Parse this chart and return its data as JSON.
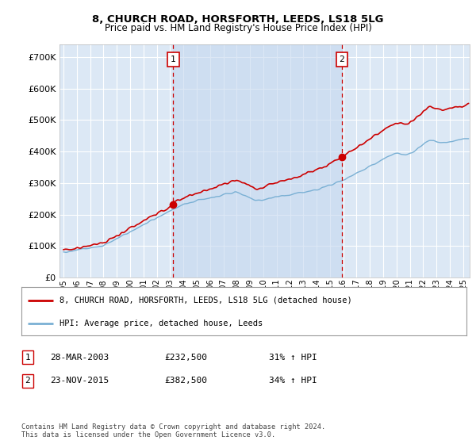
{
  "title1": "8, CHURCH ROAD, HORSFORTH, LEEDS, LS18 5LG",
  "title2": "Price paid vs. HM Land Registry's House Price Index (HPI)",
  "ytick_values": [
    0,
    100000,
    200000,
    300000,
    400000,
    500000,
    600000,
    700000
  ],
  "ylim": [
    0,
    740000
  ],
  "xlim_start": 1994.7,
  "xlim_end": 2025.5,
  "plot_bg": "#dce8f5",
  "grid_color": "#ffffff",
  "red_color": "#cc0000",
  "blue_color": "#7ab0d4",
  "shade_color": "#c5d8ef",
  "marker1_date": 2003.24,
  "marker1_value": 232500,
  "marker2_date": 2015.9,
  "marker2_value": 382500,
  "legend_label1": "8, CHURCH ROAD, HORSFORTH, LEEDS, LS18 5LG (detached house)",
  "legend_label2": "HPI: Average price, detached house, Leeds",
  "table_entries": [
    {
      "num": "1",
      "date": "28-MAR-2003",
      "price": "£232,500",
      "pct": "31% ↑ HPI"
    },
    {
      "num": "2",
      "date": "23-NOV-2015",
      "price": "£382,500",
      "pct": "34% ↑ HPI"
    }
  ],
  "footnote": "Contains HM Land Registry data © Crown copyright and database right 2024.\nThis data is licensed under the Open Government Licence v3.0.",
  "xtick_years": [
    1995,
    1996,
    1997,
    1998,
    1999,
    2000,
    2001,
    2002,
    2003,
    2004,
    2005,
    2006,
    2007,
    2008,
    2009,
    2010,
    2011,
    2012,
    2013,
    2014,
    2015,
    2016,
    2017,
    2018,
    2019,
    2020,
    2021,
    2022,
    2023,
    2024,
    2025
  ]
}
